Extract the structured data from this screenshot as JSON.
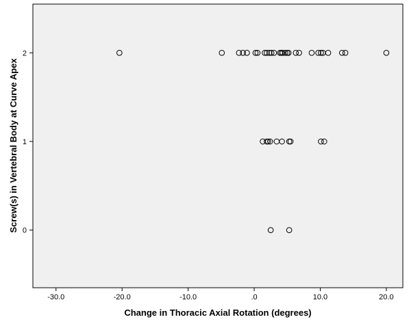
{
  "chart_data": {
    "type": "scatter",
    "title": "",
    "xlabel": "Change in Thoracic Axial Rotation (degrees)",
    "ylabel": "Screw(s) in Vertebral Body at Curve Apex",
    "xlim": [
      -33.5,
      22.5
    ],
    "ylim": [
      -0.65,
      2.55
    ],
    "x_ticks": [
      -30,
      -20,
      -10,
      0,
      10,
      20
    ],
    "x_tick_labels": [
      "-30.0",
      "-20.0",
      "-10.0",
      ".0",
      "10.0",
      "20.0"
    ],
    "y_ticks": [
      0,
      1,
      2
    ],
    "y_tick_labels": [
      "0",
      "1",
      "2"
    ],
    "grid": false,
    "background": "#f0f0f0",
    "marker_color": "#000000",
    "points": [
      {
        "x": -20.4,
        "y": 2
      },
      {
        "x": -4.9,
        "y": 2
      },
      {
        "x": -2.3,
        "y": 2
      },
      {
        "x": -1.7,
        "y": 2
      },
      {
        "x": -1.1,
        "y": 2
      },
      {
        "x": 0.2,
        "y": 2
      },
      {
        "x": 0.5,
        "y": 2
      },
      {
        "x": 1.6,
        "y": 2
      },
      {
        "x": 1.9,
        "y": 2
      },
      {
        "x": 2.3,
        "y": 2
      },
      {
        "x": 2.6,
        "y": 2
      },
      {
        "x": 3.0,
        "y": 2
      },
      {
        "x": 3.9,
        "y": 2
      },
      {
        "x": 4.1,
        "y": 2
      },
      {
        "x": 4.3,
        "y": 2
      },
      {
        "x": 4.7,
        "y": 2
      },
      {
        "x": 5.0,
        "y": 2
      },
      {
        "x": 5.2,
        "y": 2
      },
      {
        "x": 6.3,
        "y": 2
      },
      {
        "x": 6.8,
        "y": 2
      },
      {
        "x": 8.7,
        "y": 2
      },
      {
        "x": 9.7,
        "y": 2
      },
      {
        "x": 10.1,
        "y": 2
      },
      {
        "x": 10.4,
        "y": 2
      },
      {
        "x": 11.2,
        "y": 2
      },
      {
        "x": 13.3,
        "y": 2
      },
      {
        "x": 13.8,
        "y": 2
      },
      {
        "x": 20.0,
        "y": 2
      },
      {
        "x": 1.3,
        "y": 1
      },
      {
        "x": 1.9,
        "y": 1
      },
      {
        "x": 2.1,
        "y": 1
      },
      {
        "x": 2.4,
        "y": 1
      },
      {
        "x": 3.4,
        "y": 1
      },
      {
        "x": 4.2,
        "y": 1
      },
      {
        "x": 5.3,
        "y": 1
      },
      {
        "x": 5.5,
        "y": 1
      },
      {
        "x": 10.1,
        "y": 1
      },
      {
        "x": 10.6,
        "y": 1
      },
      {
        "x": 2.5,
        "y": 0
      },
      {
        "x": 5.3,
        "y": 0
      }
    ]
  }
}
